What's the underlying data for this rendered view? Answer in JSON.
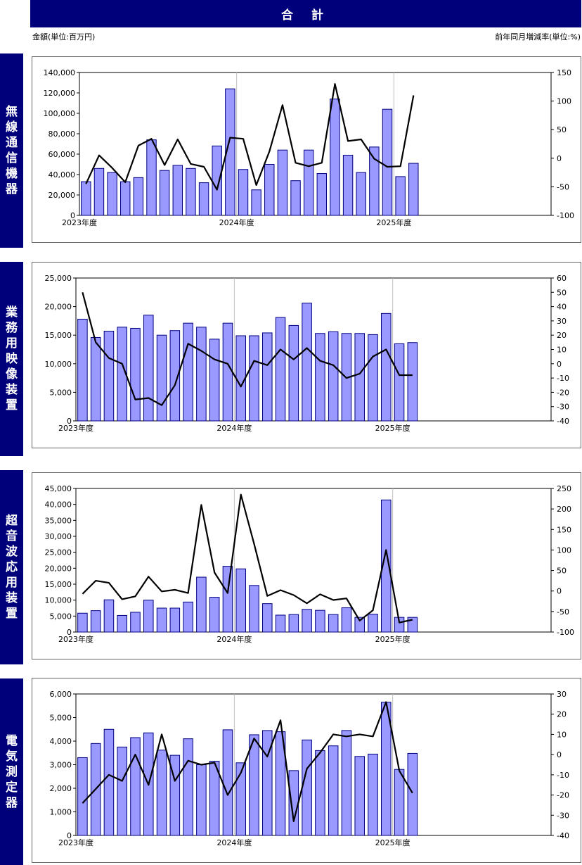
{
  "header": {
    "title": "合 計",
    "left_note": "金額(単位:百万円)",
    "right_note": "前年同月増減率(単位:%)"
  },
  "colors": {
    "bar_fill": "#9999ff",
    "bar_stroke": "#000080",
    "line": "#000000",
    "header_bg": "#00007a"
  },
  "chart_data": [
    {
      "type": "bar",
      "title": "無線通信機器",
      "x_labels": [
        "2023年度",
        "2024年度",
        "2025年度"
      ],
      "x_label_index": [
        0,
        12,
        24
      ],
      "y_ticks": [
        "140,000",
        "120,000",
        "100,000",
        "80,000",
        "60,000",
        "40,000",
        "20,000",
        "0"
      ],
      "y2_ticks": [
        "150",
        "100",
        "50",
        "0",
        "-50",
        "-100"
      ],
      "ylim": [
        0,
        140000
      ],
      "y2lim": [
        -100,
        150
      ],
      "series": [
        {
          "name": "金額",
          "type": "bar",
          "values": [
            33000,
            46000,
            42000,
            33000,
            37000,
            74000,
            44000,
            49000,
            46000,
            32000,
            68000,
            124000,
            45000,
            25000,
            50000,
            64000,
            34000,
            64000,
            41000,
            114000,
            59000,
            42000,
            67000,
            104000,
            38000,
            51000
          ]
        },
        {
          "name": "前年同月増減率",
          "type": "line",
          "axis": "right",
          "values": [
            -45,
            5,
            -17,
            -42,
            22,
            34,
            -12,
            33,
            -10,
            -15,
            -55,
            36,
            34,
            -47,
            12,
            93,
            -8,
            -14,
            -8,
            130,
            30,
            33,
            -1,
            -15,
            -14,
            110
          ]
        }
      ]
    },
    {
      "type": "bar",
      "title": "業務用映像装置",
      "x_labels": [
        "2023年度",
        "2024年度",
        "2025年度"
      ],
      "x_label_index": [
        0,
        12,
        24
      ],
      "y_ticks": [
        "25,000",
        "20,000",
        "15,000",
        "10,000",
        "5,000",
        "0"
      ],
      "y2_ticks": [
        "60",
        "50",
        "40",
        "30",
        "20",
        "10",
        "0",
        "-10",
        "-20",
        "-30",
        "-40"
      ],
      "ylim": [
        0,
        25000
      ],
      "y2lim": [
        -40,
        60
      ],
      "series": [
        {
          "name": "金額",
          "type": "bar",
          "values": [
            17800,
            14600,
            15700,
            16400,
            16200,
            18500,
            15000,
            15800,
            17100,
            16400,
            14300,
            17100,
            14900,
            14900,
            15400,
            18100,
            16700,
            20600,
            15300,
            15600,
            15300,
            15300,
            15100,
            18800,
            13500,
            13700
          ]
        },
        {
          "name": "前年同月増減率",
          "type": "line",
          "axis": "right",
          "values": [
            50,
            15,
            4,
            0,
            -25,
            -24,
            -29,
            -15,
            14,
            9,
            3,
            0,
            -16,
            2,
            -1,
            10,
            3,
            11,
            2,
            -1,
            -10,
            -7,
            5,
            10,
            -8,
            -8
          ]
        }
      ]
    },
    {
      "type": "bar",
      "title": "超音波応用装置",
      "x_labels": [
        "2023年度",
        "2024年度",
        "2025年度"
      ],
      "x_label_index": [
        0,
        12,
        24
      ],
      "y_ticks": [
        "45,000",
        "40,000",
        "35,000",
        "30,000",
        "25,000",
        "20,000",
        "15,000",
        "10,000",
        "5,000",
        "0"
      ],
      "y2_ticks": [
        "250",
        "200",
        "150",
        "100",
        "50",
        "0",
        "-50",
        "-100"
      ],
      "ylim": [
        0,
        45000
      ],
      "y2lim": [
        -100,
        250
      ],
      "series": [
        {
          "name": "金額",
          "type": "bar",
          "values": [
            5900,
            6700,
            10100,
            5200,
            6200,
            10000,
            7500,
            7500,
            9400,
            17200,
            10900,
            20600,
            19800,
            14600,
            8900,
            5300,
            5500,
            7100,
            6800,
            5500,
            7600,
            4600,
            5600,
            41400,
            4600,
            4600
          ]
        },
        {
          "name": "前年同月増減率",
          "type": "line",
          "axis": "right",
          "values": [
            -7,
            25,
            20,
            -20,
            -13,
            35,
            -1,
            3,
            -5,
            210,
            45,
            -5,
            235,
            115,
            -12,
            2,
            -10,
            -30,
            -8,
            -22,
            -18,
            -72,
            -47,
            100,
            -77,
            -70
          ]
        }
      ]
    },
    {
      "type": "bar",
      "title": "電気測定器",
      "x_labels": [
        "2023年度",
        "2024年度",
        "2025年度"
      ],
      "x_label_index": [
        0,
        12,
        24
      ],
      "y_ticks": [
        "6,000",
        "5,000",
        "4,000",
        "3,000",
        "2,000",
        "1,000",
        "0"
      ],
      "y2_ticks": [
        "30",
        "20",
        "10",
        "0",
        "-10",
        "-20",
        "-30",
        "-40"
      ],
      "ylim": [
        0,
        6000
      ],
      "y2lim": [
        -40,
        30
      ],
      "series": [
        {
          "name": "金額",
          "type": "bar",
          "values": [
            3300,
            3900,
            4500,
            3750,
            4150,
            4350,
            3620,
            3400,
            4100,
            3000,
            3150,
            4480,
            3080,
            4270,
            4450,
            4400,
            2750,
            4050,
            3600,
            3800,
            4450,
            3350,
            3450,
            5650,
            2800,
            3480
          ]
        },
        {
          "name": "前年同月増減率",
          "type": "line",
          "axis": "right",
          "values": [
            -24,
            -17,
            -10,
            -13,
            0,
            -15,
            10,
            -13,
            -3,
            -5,
            -4,
            -20,
            -9,
            8,
            -1,
            17,
            -33,
            -7,
            1,
            10,
            9,
            10,
            9,
            26,
            -8,
            -19
          ]
        }
      ]
    }
  ]
}
